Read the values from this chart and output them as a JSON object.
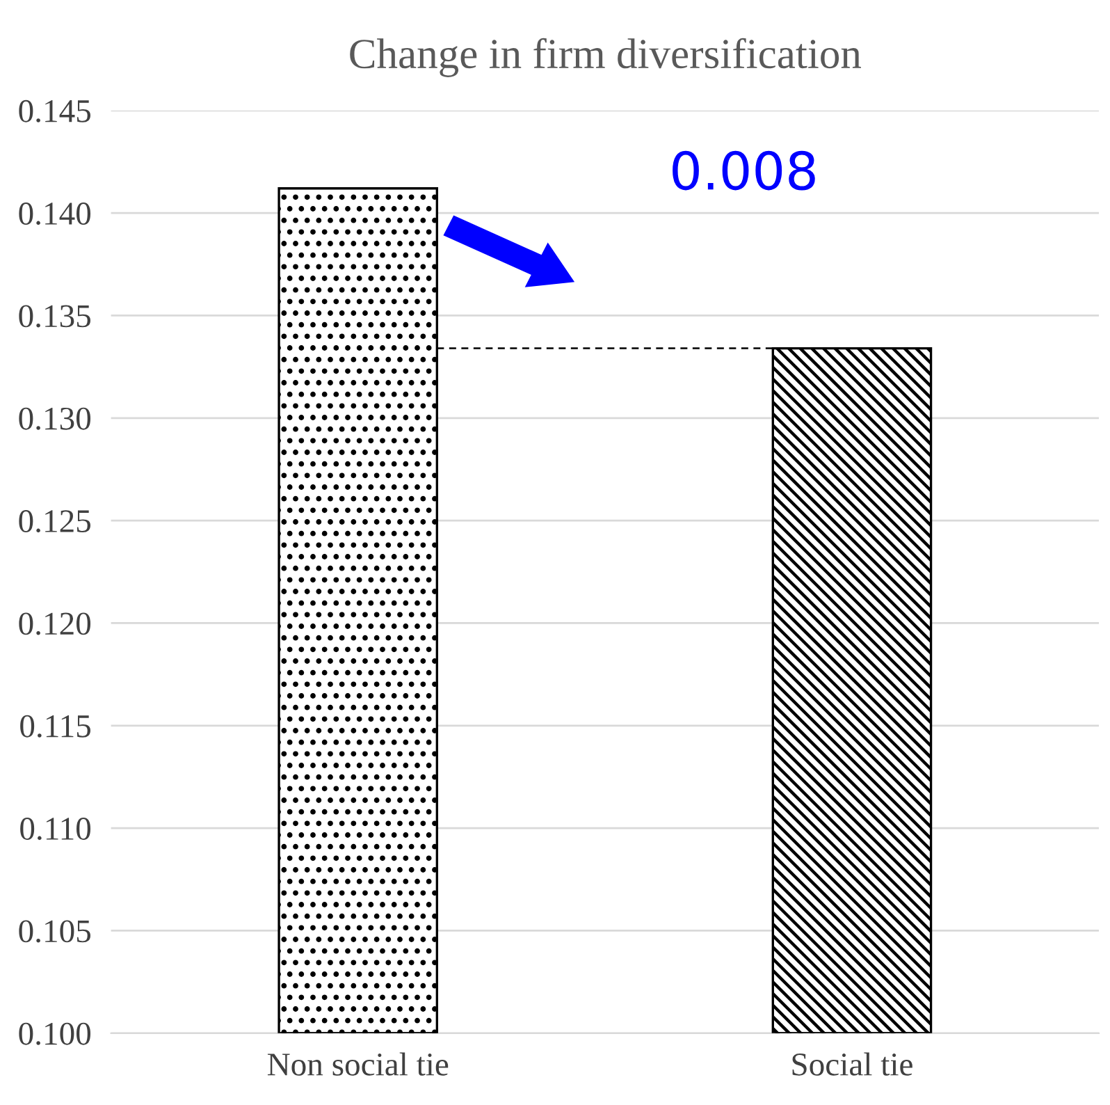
{
  "chart_data": {
    "type": "bar",
    "title": "Change in firm diversification",
    "categories": [
      "Non social tie",
      "Social tie"
    ],
    "series": [
      {
        "color": "#000000",
        "values": [
          0.1412,
          0.1334
        ]
      }
    ],
    "ylim": [
      0.1,
      0.145
    ],
    "yticks": [
      {
        "value": 0.1,
        "label": "0.100"
      },
      0.105,
      {
        "value": 0.11,
        "label": "0.110"
      },
      0.115,
      {
        "value": 0.12,
        "label": "0.120"
      },
      0.125,
      {
        "value": 0.13,
        "label": "0.130"
      },
      0.135,
      {
        "value": 0.14,
        "label": "0.140"
      },
      0.145
    ],
    "ref_lines": [
      {
        "axis": "y",
        "value": 0.1334,
        "line_style": "dashed",
        "color": "#000000"
      }
    ],
    "annotations": [
      "0.008"
    ],
    "grid": "y",
    "legend": false
  }
}
